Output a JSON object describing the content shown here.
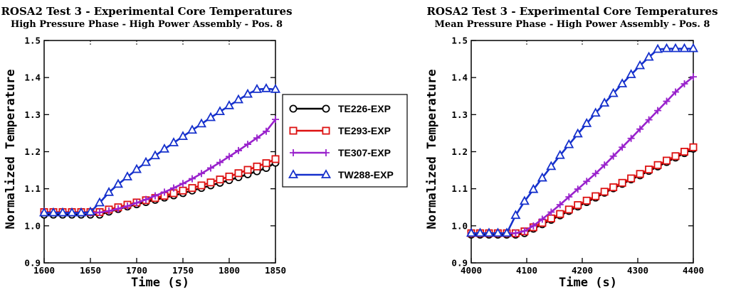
{
  "chart_data": [
    {
      "type": "line",
      "title": "ROSA2 Test 3 - Experimental Core Temperatures",
      "subtitle": "High Pressure Phase - High Power Assembly - Pos. 8",
      "xlabel": "Time (s)",
      "ylabel": "Normalized Temperature",
      "xlim": [
        1600,
        1850
      ],
      "ylim": [
        0.9,
        1.5
      ],
      "xticks": [
        "1600",
        "1650",
        "1700",
        "1750",
        "1800",
        "1850"
      ],
      "yticks": [
        "0.9",
        "1.0",
        "1.1",
        "1.2",
        "1.3",
        "1.4",
        "1.5"
      ],
      "x": [
        1600,
        1610,
        1620,
        1630,
        1640,
        1650,
        1660,
        1670,
        1680,
        1690,
        1700,
        1710,
        1720,
        1730,
        1740,
        1750,
        1760,
        1770,
        1780,
        1790,
        1800,
        1810,
        1820,
        1830,
        1840,
        1850
      ],
      "series": [
        {
          "name": "TE226-EXP",
          "color": "#000000",
          "marker": "circle",
          "values": [
            1.03,
            1.03,
            1.03,
            1.03,
            1.03,
            1.03,
            1.03,
            1.038,
            1.045,
            1.052,
            1.058,
            1.064,
            1.07,
            1.076,
            1.082,
            1.088,
            1.095,
            1.102,
            1.109,
            1.116,
            1.123,
            1.131,
            1.139,
            1.147,
            1.156,
            1.17
          ]
        },
        {
          "name": "TE293-EXP",
          "color": "#dd1111",
          "marker": "square",
          "values": [
            1.037,
            1.037,
            1.037,
            1.037,
            1.037,
            1.037,
            1.037,
            1.044,
            1.05,
            1.057,
            1.063,
            1.069,
            1.075,
            1.081,
            1.088,
            1.095,
            1.102,
            1.109,
            1.117,
            1.125,
            1.133,
            1.142,
            1.151,
            1.16,
            1.169,
            1.18
          ]
        },
        {
          "name": "TE307-EXP",
          "color": "#9922cc",
          "marker": "plus",
          "values": [
            1.035,
            1.035,
            1.035,
            1.035,
            1.035,
            1.035,
            1.036,
            1.04,
            1.046,
            1.053,
            1.062,
            1.071,
            1.081,
            1.091,
            1.102,
            1.114,
            1.127,
            1.141,
            1.156,
            1.171,
            1.187,
            1.203,
            1.22,
            1.237,
            1.255,
            1.287
          ]
        },
        {
          "name": "TW288-EXP",
          "color": "#1530cc",
          "marker": "triangle",
          "values": [
            1.035,
            1.035,
            1.035,
            1.035,
            1.035,
            1.037,
            1.062,
            1.09,
            1.112,
            1.132,
            1.152,
            1.171,
            1.189,
            1.207,
            1.224,
            1.241,
            1.258,
            1.275,
            1.292,
            1.308,
            1.324,
            1.34,
            1.355,
            1.368,
            1.37,
            1.368
          ]
        }
      ],
      "grid": false,
      "legend": "between panels"
    },
    {
      "type": "line",
      "title": "ROSA2 Test 3 - Experimental Core Temperatures",
      "subtitle": "Mean Pressure Phase - High Power Assembly - Pos. 8",
      "xlabel": "Time (s)",
      "ylabel": "Normalized Temperature",
      "xlim": [
        4000,
        4400
      ],
      "ylim": [
        0.9,
        1.5
      ],
      "xticks": [
        "4000",
        "4100",
        "4200",
        "4300",
        "4400"
      ],
      "yticks": [
        "0.9",
        "1.0",
        "1.1",
        "1.2",
        "1.3",
        "1.4",
        "1.5"
      ],
      "x": [
        4000,
        4016,
        4032,
        4048,
        4064,
        4080,
        4096,
        4112,
        4128,
        4144,
        4160,
        4176,
        4192,
        4208,
        4224,
        4240,
        4256,
        4272,
        4288,
        4304,
        4320,
        4336,
        4352,
        4368,
        4384,
        4400
      ],
      "series": [
        {
          "name": "TE226-EXP",
          "color": "#000000",
          "marker": "circle",
          "values": [
            0.976,
            0.976,
            0.976,
            0.976,
            0.976,
            0.976,
            0.98,
            0.992,
            1.004,
            1.016,
            1.028,
            1.04,
            1.052,
            1.064,
            1.076,
            1.089,
            1.101,
            1.113,
            1.125,
            1.136,
            1.148,
            1.16,
            1.172,
            1.184,
            1.196,
            1.208
          ]
        },
        {
          "name": "TE293-EXP",
          "color": "#dd1111",
          "marker": "square",
          "values": [
            0.98,
            0.98,
            0.98,
            0.98,
            0.98,
            0.98,
            0.985,
            0.996,
            1.008,
            1.02,
            1.032,
            1.044,
            1.056,
            1.068,
            1.08,
            1.092,
            1.104,
            1.116,
            1.128,
            1.14,
            1.152,
            1.164,
            1.176,
            1.188,
            1.2,
            1.212
          ]
        },
        {
          "name": "TE307-EXP",
          "color": "#9922cc",
          "marker": "plus",
          "values": [
            0.98,
            0.98,
            0.98,
            0.98,
            0.98,
            0.98,
            0.986,
            1.0,
            1.018,
            1.037,
            1.057,
            1.078,
            1.099,
            1.12,
            1.141,
            1.164,
            1.188,
            1.212,
            1.236,
            1.261,
            1.286,
            1.311,
            1.336,
            1.361,
            1.383,
            1.402
          ]
        },
        {
          "name": "TW288-EXP",
          "color": "#1530cc",
          "marker": "triangle",
          "values": [
            0.98,
            0.98,
            0.98,
            0.98,
            0.98,
            1.028,
            1.066,
            1.098,
            1.129,
            1.16,
            1.19,
            1.219,
            1.248,
            1.276,
            1.304,
            1.331,
            1.357,
            1.383,
            1.408,
            1.432,
            1.455,
            1.476,
            1.478,
            1.478,
            1.478,
            1.478
          ]
        }
      ],
      "grid": false,
      "legend": "between panels"
    }
  ]
}
